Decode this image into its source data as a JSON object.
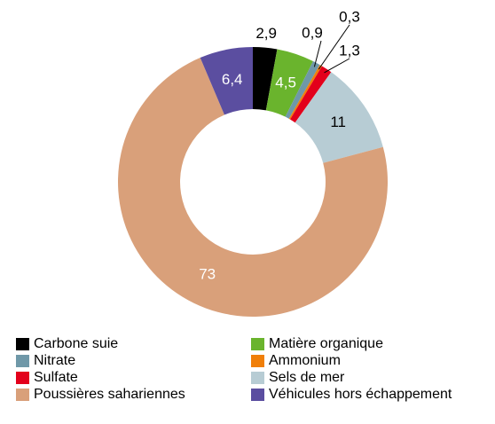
{
  "chart_data": {
    "type": "donut",
    "categories": [
      "Carbone suie",
      "Matière organique",
      "Nitrate",
      "Ammonium",
      "Sulfate",
      "Sels de mer",
      "Poussières sahariennes",
      "Véhicules hors échappement"
    ],
    "values": [
      2.9,
      4.5,
      0.9,
      0.3,
      1.3,
      11,
      73,
      6.4
    ],
    "value_labels": [
      "2,9",
      "4,5",
      "0,9",
      "0,3",
      "1,3",
      "11",
      "73",
      "6,4"
    ],
    "colors": [
      "#000000",
      "#6ab42d",
      "#6f98a8",
      "#f07f09",
      "#e3001b",
      "#b7ccd4",
      "#d9a07a",
      "#5b4ea0"
    ]
  }
}
